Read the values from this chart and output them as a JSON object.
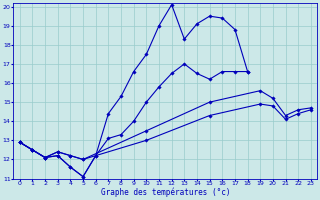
{
  "title": "Graphe des températures (°c)",
  "bg_color": "#cce8e8",
  "line_color": "#0000bb",
  "grid_color": "#99cccc",
  "xlim": [
    -0.5,
    23.5
  ],
  "ylim": [
    11,
    20.2
  ],
  "xticks": [
    0,
    1,
    2,
    3,
    4,
    5,
    6,
    7,
    8,
    9,
    10,
    11,
    12,
    13,
    14,
    15,
    16,
    17,
    18,
    19,
    20,
    21,
    22,
    23
  ],
  "yticks": [
    11,
    12,
    13,
    14,
    15,
    16,
    17,
    18,
    19,
    20
  ],
  "series": [
    {
      "x": [
        0,
        1,
        2,
        3,
        4,
        5,
        6,
        7,
        8,
        9,
        10,
        11,
        12,
        13,
        14,
        15,
        16,
        17,
        18
      ],
      "y": [
        12.9,
        12.5,
        12.1,
        12.2,
        11.6,
        11.1,
        12.2,
        14.4,
        15.3,
        16.6,
        17.5,
        19.0,
        20.1,
        18.3,
        19.1,
        19.5,
        19.4,
        18.8,
        16.6
      ]
    },
    {
      "x": [
        0,
        1,
        2,
        3,
        4,
        5,
        6,
        7,
        8,
        9,
        10,
        11,
        12,
        13,
        14,
        15,
        16,
        17,
        18
      ],
      "y": [
        12.9,
        12.5,
        12.1,
        12.2,
        11.6,
        11.1,
        12.2,
        13.1,
        13.3,
        14.0,
        15.0,
        15.8,
        16.5,
        17.0,
        16.5,
        16.2,
        16.6,
        16.6,
        16.6
      ]
    },
    {
      "x": [
        0,
        1,
        2,
        3,
        4,
        5,
        10,
        15,
        19,
        20,
        21,
        22,
        23
      ],
      "y": [
        12.9,
        12.5,
        12.1,
        12.4,
        12.2,
        12.0,
        13.5,
        15.0,
        15.6,
        15.2,
        14.3,
        14.6,
        14.7
      ]
    },
    {
      "x": [
        0,
        1,
        2,
        3,
        4,
        5,
        10,
        15,
        19,
        20,
        21,
        22,
        23
      ],
      "y": [
        12.9,
        12.5,
        12.1,
        12.4,
        12.2,
        12.0,
        13.0,
        14.3,
        14.9,
        14.8,
        14.1,
        14.4,
        14.6
      ]
    }
  ]
}
